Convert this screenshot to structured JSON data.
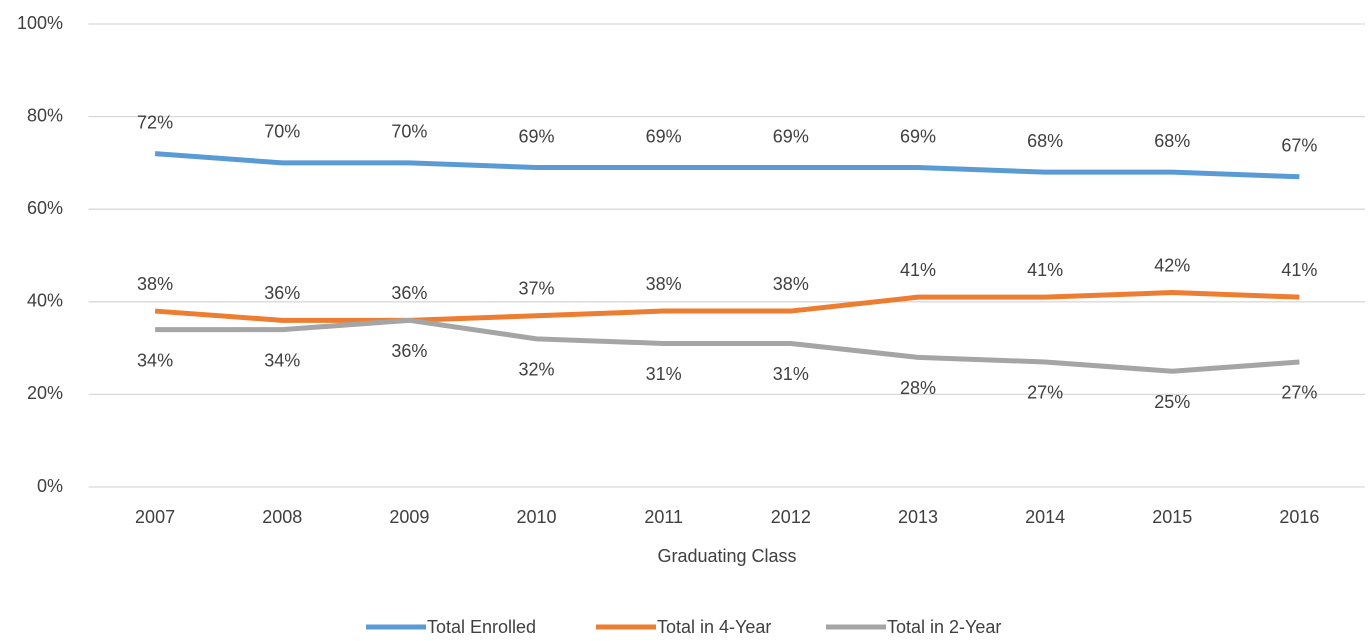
{
  "chart_data": {
    "type": "line",
    "x_label": "Graduating Class",
    "categories": [
      "2007",
      "2008",
      "2009",
      "2010",
      "2011",
      "2012",
      "2013",
      "2014",
      "2015",
      "2016"
    ],
    "series": [
      {
        "name": "Total Enrolled",
        "color": "#5b9bd5",
        "values": [
          72,
          70,
          70,
          69,
          69,
          69,
          69,
          68,
          68,
          67
        ],
        "value_labels": [
          "72%",
          "70%",
          "70%",
          "69%",
          "69%",
          "69%",
          "69%",
          "68%",
          "68%",
          "67%"
        ]
      },
      {
        "name": "Total in 4-Year",
        "color": "#ed7d31",
        "values": [
          38,
          36,
          36,
          37,
          38,
          38,
          41,
          41,
          42,
          41
        ],
        "value_labels": [
          "38%",
          "36%",
          "36%",
          "37%",
          "38%",
          "38%",
          "41%",
          "41%",
          "42%",
          "41%"
        ]
      },
      {
        "name": "Total in 2-Year",
        "color": "#a5a5a5",
        "values": [
          34,
          34,
          36,
          32,
          31,
          31,
          28,
          27,
          25,
          27
        ],
        "value_labels": [
          "34%",
          "34%",
          "36%",
          "32%",
          "31%",
          "31%",
          "28%",
          "27%",
          "25%",
          "27%"
        ]
      }
    ],
    "ylim": [
      0,
      100
    ],
    "yticks": [
      {
        "value": 0,
        "label": "0%"
      },
      {
        "value": 20,
        "label": "20%"
      },
      {
        "value": 40,
        "label": "40%"
      },
      {
        "value": 60,
        "label": "60%"
      },
      {
        "value": 80,
        "label": "80%"
      },
      {
        "value": 100,
        "label": "100%"
      }
    ],
    "grid": true,
    "legend": "bottom"
  }
}
